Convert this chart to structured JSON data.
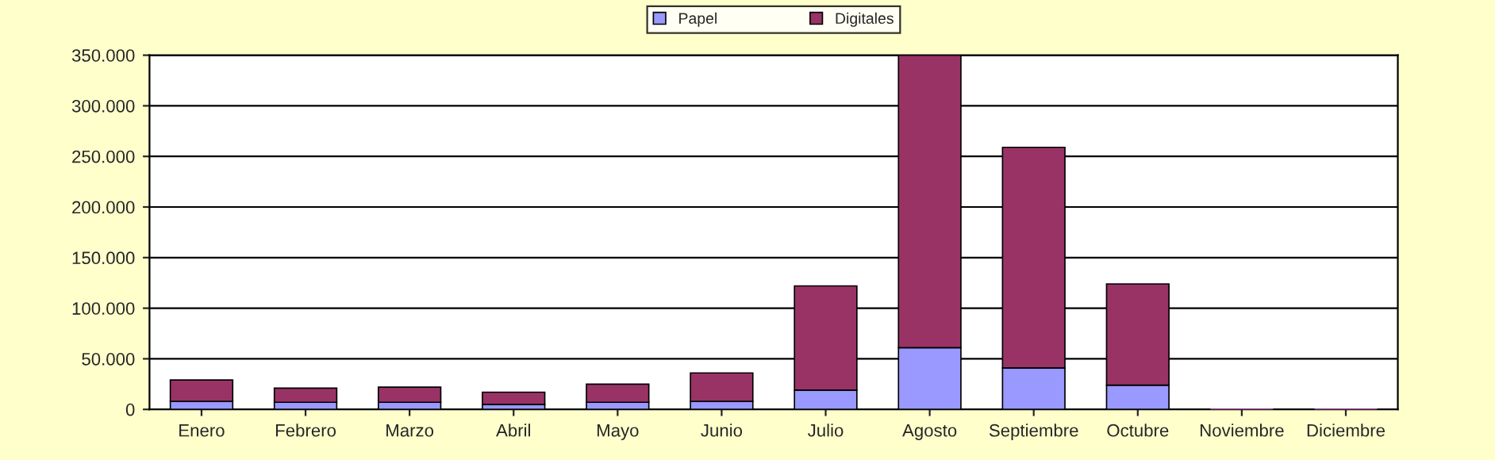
{
  "chart_data": {
    "type": "bar",
    "stacked": true,
    "categories": [
      "Enero",
      "Febrero",
      "Marzo",
      "Abril",
      "Mayo",
      "Junio",
      "Julio",
      "Agosto",
      "Septiembre",
      "Octubre",
      "Noviembre",
      "Diciembre"
    ],
    "series": [
      {
        "name": "Papel",
        "color": "#9999ff",
        "values": [
          8000,
          7000,
          7000,
          5000,
          7000,
          8000,
          19000,
          61000,
          41000,
          24000,
          0,
          0
        ]
      },
      {
        "name": "Digitales",
        "color": "#993366",
        "values": [
          21000,
          14000,
          15000,
          12000,
          18000,
          28000,
          103000,
          289000,
          218000,
          100000,
          0,
          0
        ]
      }
    ],
    "ylim": [
      0,
      350000
    ],
    "yticks": [
      {
        "value": 0,
        "label": "0"
      },
      {
        "value": 50000,
        "label": "50.000"
      },
      {
        "value": 100000,
        "label": "100.000"
      },
      {
        "value": 150000,
        "label": "150.000"
      },
      {
        "value": 200000,
        "label": "200.000"
      },
      {
        "value": 250000,
        "label": "250.000"
      },
      {
        "value": 300000,
        "label": "300.000"
      },
      {
        "value": 350000,
        "label": "350.000"
      }
    ],
    "grid": "y",
    "legend": "top"
  }
}
